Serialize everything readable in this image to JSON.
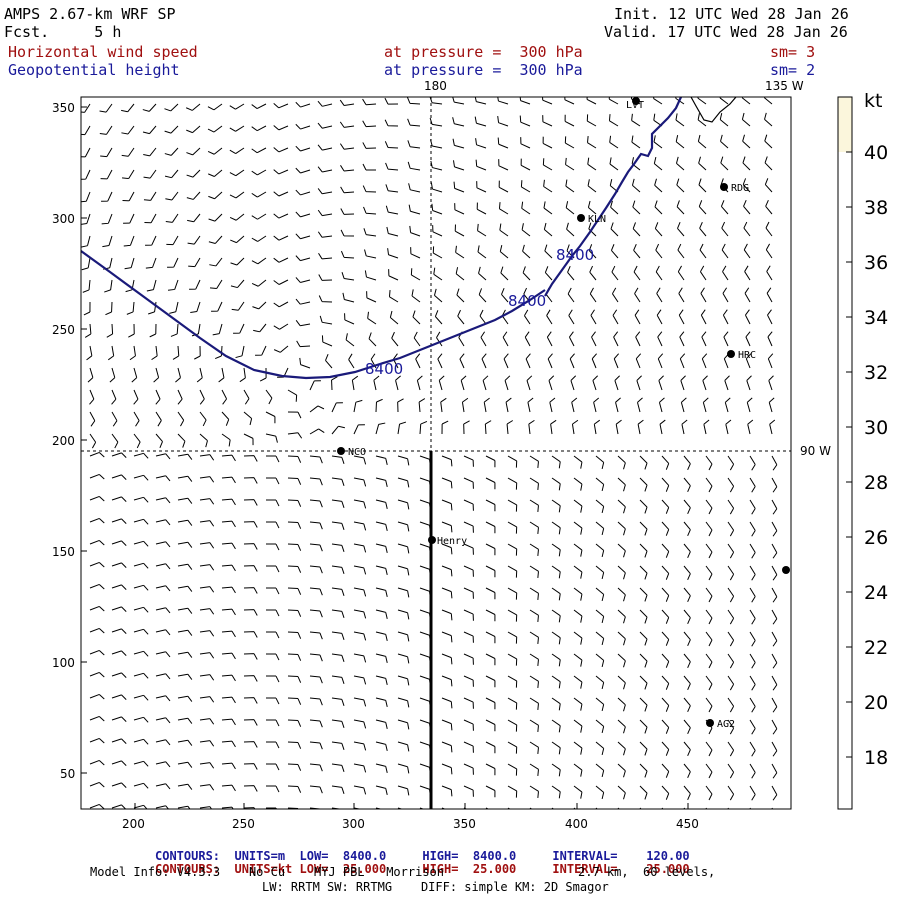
{
  "header": {
    "model": "AMPS 2.67-km WRF SP",
    "fcst": "Fcst.     5 h",
    "init": "Init. 12 UTC Wed 28 Jan 26",
    "valid": "Valid. 17 UTC Wed 28 Jan 26",
    "field1_name": "Horizontal wind speed",
    "field1_level": "at pressure =  300 hPa",
    "field1_sm": "sm= 3",
    "field2_name": "Geopotential height",
    "field2_level": "at pressure =  300 hPa",
    "field2_sm": "sm= 2"
  },
  "map": {
    "x_ticks": [
      "200",
      "250",
      "300",
      "350",
      "400",
      "450"
    ],
    "y_ticks": [
      "350",
      "300",
      "250",
      "200",
      "150",
      "100",
      "50"
    ],
    "meridian_180": "180",
    "meridian_135w": "135 W",
    "meridian_90w": "90 W",
    "contour_labels": [
      "8400",
      "8400",
      "8400"
    ],
    "stations": [
      {
        "name": "LVT"
      },
      {
        "name": "RDG"
      },
      {
        "name": "KLN"
      },
      {
        "name": "HRC"
      },
      {
        "name": "NCO"
      },
      {
        "name": "Henry"
      },
      {
        "name": "AG2"
      },
      {
        "name": ""
      }
    ]
  },
  "colorbar": {
    "unit": "kt",
    "labels": [
      "40",
      "38",
      "36",
      "34",
      "32",
      "30",
      "28",
      "26",
      "24",
      "22",
      "20",
      "18"
    ],
    "fill_color": "#fbf6dc"
  },
  "footer": {
    "c1_label": "CONTOURS:",
    "c1_units": "UNITS=m",
    "c1_low": "LOW=  8400.0",
    "c1_high": "HIGH=  8400.0",
    "c1_interval": "INTERVAL=    120.00",
    "c2_label": "CONTOURS:",
    "c2_units": "UNITS=kt",
    "c2_low": "LOW=  25.000",
    "c2_high": "HIGH=  25.000",
    "c2_interval": "INTERVAL=    25.000",
    "model_info": "Model Info: V4.3.3    No Cu    MYJ PBL   Morrison",
    "model_res": "2.7 km,  60 levels,",
    "model_line2": "LW: RRTM SW: RRTMG    DIFF: simple KM: 2D Smagor"
  },
  "colors": {
    "contour": "#1a1a7a",
    "title_red": "#a01010",
    "title_blue": "#1a1a9a"
  }
}
